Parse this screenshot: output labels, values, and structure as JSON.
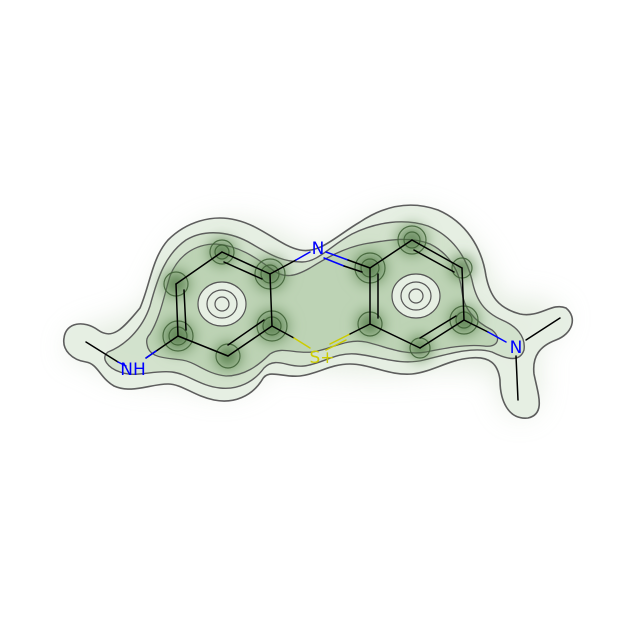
{
  "molecule": {
    "atoms": [
      {
        "id": "n-bridge",
        "label": "N",
        "color": "#0000ff"
      },
      {
        "id": "s-plus",
        "label": "S+",
        "color": "#cccc00"
      },
      {
        "id": "nh",
        "label": "NH",
        "color": "#0000ff"
      },
      {
        "id": "n-dimethyl",
        "label": "N",
        "color": "#0000ff"
      }
    ],
    "colors": {
      "bond": "#000000",
      "contour": "#555555",
      "density_light": "#e6efe3",
      "density_dark": "#2f5a23"
    }
  }
}
